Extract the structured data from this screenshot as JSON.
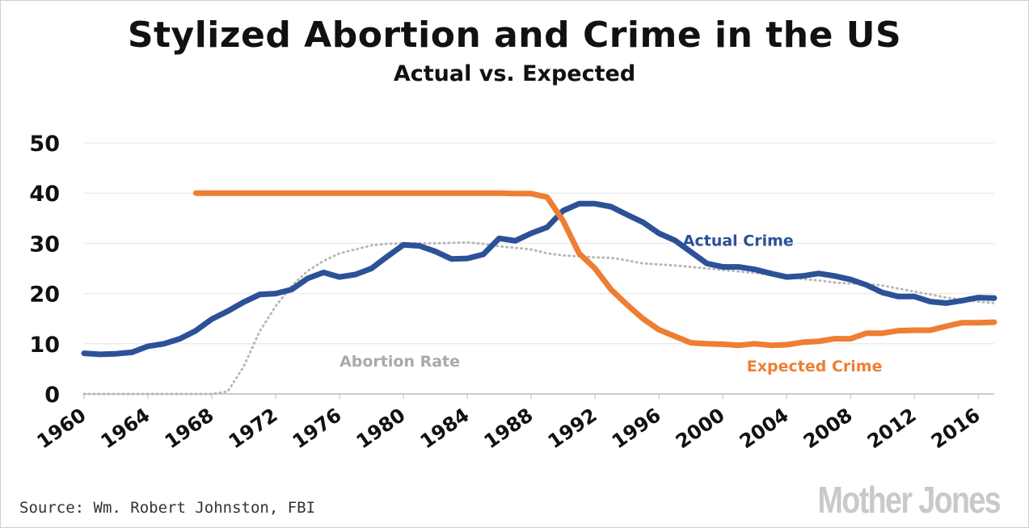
{
  "title": "Stylized Abortion and Crime in the US",
  "subtitle": "Actual vs. Expected",
  "source": "Source: Wm. Robert Johnston, FBI",
  "logo_text": "Mother Jones",
  "chart_data": {
    "type": "line",
    "title": "Stylized Abortion and Crime in the US",
    "subtitle": "Actual vs. Expected",
    "xlabel": "",
    "ylabel": "",
    "ylim": [
      0,
      50
    ],
    "xlim": [
      1960,
      2017
    ],
    "y_ticks": [
      0,
      10,
      20,
      30,
      40,
      50
    ],
    "x_ticks": [
      1960,
      1964,
      1968,
      1972,
      1976,
      1980,
      1984,
      1988,
      1992,
      1996,
      2000,
      2004,
      2008,
      2012,
      2016
    ],
    "grid": true,
    "series": [
      {
        "name": "Actual Crime",
        "color": "#2c5197",
        "style": "solid",
        "x": [
          1960,
          1961,
          1962,
          1963,
          1964,
          1965,
          1966,
          1967,
          1968,
          1969,
          1970,
          1971,
          1972,
          1973,
          1974,
          1975,
          1976,
          1977,
          1978,
          1979,
          1980,
          1981,
          1982,
          1983,
          1984,
          1985,
          1986,
          1987,
          1988,
          1989,
          1990,
          1991,
          1992,
          1993,
          1994,
          1995,
          1996,
          1997,
          1998,
          1999,
          2000,
          2001,
          2002,
          2003,
          2004,
          2005,
          2006,
          2007,
          2008,
          2009,
          2010,
          2011,
          2012,
          2013,
          2014,
          2015,
          2016,
          2017
        ],
        "y": [
          8.1,
          7.9,
          8.0,
          8.3,
          9.5,
          10.0,
          11.0,
          12.6,
          14.9,
          16.5,
          18.3,
          19.8,
          20.0,
          20.8,
          23.0,
          24.2,
          23.3,
          23.8,
          25.0,
          27.4,
          29.7,
          29.5,
          28.4,
          26.9,
          27.0,
          27.8,
          31.0,
          30.5,
          32.0,
          33.2,
          36.5,
          37.9,
          37.9,
          37.3,
          35.7,
          34.2,
          32.0,
          30.6,
          28.3,
          26.0,
          25.3,
          25.3,
          24.8,
          24.0,
          23.3,
          23.5,
          24.0,
          23.5,
          22.8,
          21.7,
          20.2,
          19.4,
          19.4,
          18.4,
          18.1,
          18.6,
          19.2,
          19.1
        ]
      },
      {
        "name": "Expected Crime",
        "color": "#ee7e32",
        "style": "solid",
        "x": [
          1967,
          1968,
          1969,
          1970,
          1971,
          1972,
          1973,
          1974,
          1975,
          1976,
          1977,
          1978,
          1979,
          1980,
          1981,
          1982,
          1983,
          1984,
          1985,
          1986,
          1987,
          1988,
          1989,
          1990,
          1991,
          1992,
          1993,
          1994,
          1995,
          1996,
          1997,
          1998,
          1999,
          2000,
          2001,
          2002,
          2003,
          2004,
          2005,
          2006,
          2007,
          2008,
          2009,
          2010,
          2011,
          2012,
          2013,
          2014,
          2015,
          2016,
          2017
        ],
        "y": [
          40,
          40,
          40,
          40,
          40,
          40,
          40,
          40,
          40,
          40,
          40,
          40,
          40,
          40,
          40,
          40,
          40,
          40,
          40,
          40,
          39.9,
          39.9,
          39.2,
          34.5,
          28.0,
          25.0,
          20.8,
          17.8,
          15.0,
          12.8,
          11.5,
          10.2,
          10.0,
          9.9,
          9.7,
          10.0,
          9.7,
          9.8,
          10.3,
          10.5,
          11.0,
          11.0,
          12.1,
          12.1,
          12.6,
          12.7,
          12.7,
          13.5,
          14.2,
          14.2,
          14.3
        ]
      },
      {
        "name": "Abortion Rate",
        "color": "#b8b8b8",
        "style": "dotted",
        "x": [
          1960,
          1962,
          1964,
          1966,
          1968,
          1969,
          1970,
          1971,
          1972,
          1973,
          1974,
          1975,
          1976,
          1977,
          1978,
          1979,
          1980,
          1981,
          1982,
          1983,
          1984,
          1985,
          1986,
          1987,
          1988,
          1989,
          1990,
          1991,
          1992,
          1993,
          1994,
          1995,
          1996,
          1997,
          1998,
          1999,
          2000,
          2001,
          2002,
          2003,
          2004,
          2005,
          2006,
          2007,
          2008,
          2009,
          2010,
          2011,
          2012,
          2013,
          2014,
          2015,
          2016,
          2017
        ],
        "y": [
          0,
          0,
          0,
          0,
          0,
          0.5,
          5.5,
          12.5,
          17.5,
          21.5,
          24.5,
          26.5,
          28.0,
          28.8,
          29.6,
          29.9,
          30.0,
          30.0,
          30.0,
          30.1,
          30.2,
          29.9,
          29.4,
          29.1,
          28.8,
          28.0,
          27.6,
          27.4,
          27.2,
          27.1,
          26.6,
          26.0,
          25.8,
          25.6,
          25.3,
          25.0,
          24.7,
          24.4,
          24.1,
          23.7,
          23.3,
          22.9,
          22.6,
          22.2,
          22.0,
          21.9,
          21.6,
          21.0,
          20.4,
          19.8,
          19.2,
          18.8,
          18.4,
          18.1
        ]
      }
    ],
    "annotations": [
      {
        "text": "Actual Crime",
        "series": "Actual Crime",
        "x": 1997.5,
        "y": 29.5
      },
      {
        "text": "Expected Crime",
        "series": "Expected Crime",
        "x": 2001.5,
        "y": 4.5
      },
      {
        "text": "Abortion Rate",
        "series": "Abortion Rate",
        "x": 1976,
        "y": 5.5
      }
    ]
  }
}
